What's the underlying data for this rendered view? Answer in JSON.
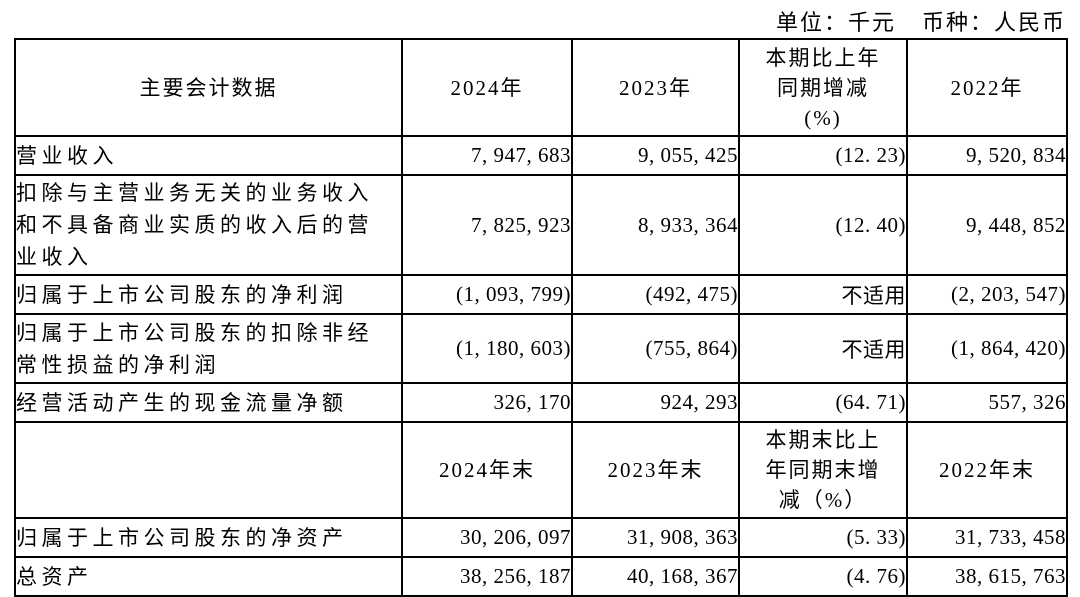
{
  "note": {
    "unit": "单位：千元",
    "currency": "币种：人民币"
  },
  "table": {
    "header_row_1": {
      "label": "主要会计数据",
      "y2024": "2024年",
      "y2023": "2023年",
      "change": "本期比上年\n同期增减\n(%)",
      "y2022": "2022年"
    },
    "rows_period": [
      {
        "label": "营业收入",
        "v2024": "7, 947, 683",
        "v2023": "9, 055, 425",
        "change": "(12. 23)",
        "v2022": "9, 520, 834"
      },
      {
        "label": "扣除与主营业务无关的业务收入\n和不具备商业实质的收入后的营\n业收入",
        "v2024": "7, 825, 923",
        "v2023": "8, 933, 364",
        "change": "(12. 40)",
        "v2022": "9, 448, 852"
      },
      {
        "label": "归属于上市公司股东的净利润",
        "v2024": "(1, 093, 799)",
        "v2023": "(492, 475)",
        "change": "不适用",
        "v2022": "(2, 203, 547)"
      },
      {
        "label": "归属于上市公司股东的扣除非经\n常性损益的净利润",
        "v2024": "(1, 180, 603)",
        "v2023": "(755, 864)",
        "change": "不适用",
        "v2022": "(1, 864, 420)"
      },
      {
        "label": "经营活动产生的现金流量净额",
        "v2024": "326, 170",
        "v2023": "924, 293",
        "change": "(64. 71)",
        "v2022": "557, 326"
      }
    ],
    "header_row_2": {
      "label": "",
      "y2024": "2024年末",
      "y2023": "2023年末",
      "change": "本期末比上\n年同期末增\n减（%）",
      "y2022": "2022年末"
    },
    "rows_yearend": [
      {
        "label": "归属于上市公司股东的净资产",
        "v2024": "30, 206, 097",
        "v2023": "31, 908, 363",
        "change": "(5. 33)",
        "v2022": "31, 733, 458"
      },
      {
        "label": "总资产",
        "v2024": "38, 256, 187",
        "v2023": "40, 168, 367",
        "change": "(4. 76)",
        "v2022": "38, 615, 763"
      }
    ]
  }
}
